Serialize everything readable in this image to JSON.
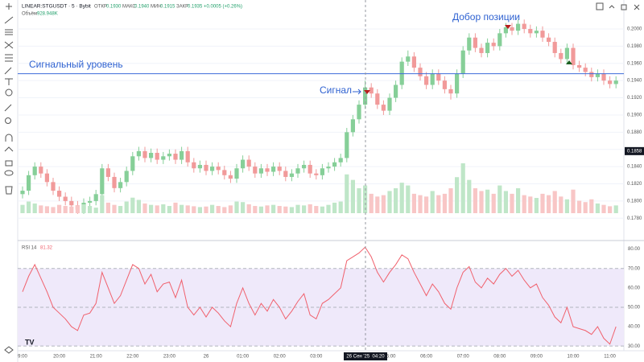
{
  "header": {
    "symbol": "LINEAR:STGUSDT · 5 · Bybit",
    "open_label": "ОТКР",
    "open": "0.1930",
    "high_label": "МАКС",
    "high": "0.1940",
    "low_label": "МИН",
    "low": "0.1915",
    "close_label": "ЗАКР",
    "close": "0.1935",
    "change": "+0.0005 (+0.26%)"
  },
  "chart_data": [
    {
      "type": "candlestick",
      "up_color": "#86cf98",
      "down_color": "#f19a9a",
      "ylim": [
        0.1755,
        0.2029
      ],
      "yticks": [
        {
          "value": 0.178,
          "label": "0.1780"
        },
        {
          "value": 0.18,
          "label": "0.1800"
        },
        {
          "value": 0.182,
          "label": "0.1820"
        },
        {
          "value": 0.184,
          "label": "0.1840"
        },
        {
          "value": 0.186,
          "label": "0.1860"
        },
        {
          "value": 0.188,
          "label": "0.1880"
        },
        {
          "value": 0.19,
          "label": "0.1900"
        },
        {
          "value": 0.192,
          "label": "0.1920"
        },
        {
          "value": 0.194,
          "label": "0.1940"
        },
        {
          "value": 0.196,
          "label": "0.1960"
        },
        {
          "value": 0.198,
          "label": "0.1980"
        },
        {
          "value": 0.2,
          "label": "0.2000"
        }
      ],
      "grid": true,
      "level": {
        "value": 0.1948,
        "label": "Сигнальный уровень",
        "color": "#3d6bd9"
      },
      "crosshair_price": {
        "value": 0.1858,
        "label": "0.1858"
      },
      "annotations": [
        "Добор позиции",
        "Сигнал"
      ],
      "open": [
        0.1808,
        0.1812,
        0.183,
        0.184,
        0.1832,
        0.1822,
        0.1812,
        0.1805,
        0.18,
        0.1795,
        0.179,
        0.1798,
        0.18,
        0.1808,
        0.1838,
        0.1828,
        0.1815,
        0.1822,
        0.1835,
        0.1852,
        0.1858,
        0.185,
        0.1856,
        0.1848,
        0.1852,
        0.1855,
        0.1848,
        0.1858,
        0.1845,
        0.1838,
        0.1842,
        0.1835,
        0.184,
        0.1836,
        0.183,
        0.1826,
        0.1838,
        0.1848,
        0.184,
        0.1832,
        0.1838,
        0.1834,
        0.184,
        0.1835,
        0.1828,
        0.1832,
        0.1838,
        0.1842,
        0.1832,
        0.183,
        0.1838,
        0.184,
        0.1845,
        0.185,
        0.188,
        0.1895,
        0.1912,
        0.1932,
        0.1925,
        0.1912,
        0.1905,
        0.192,
        0.1935,
        0.1962,
        0.1968,
        0.1955,
        0.1945,
        0.1935,
        0.1948,
        0.194,
        0.193,
        0.1925,
        0.1948,
        0.1975,
        0.199,
        0.1978,
        0.1972,
        0.1984,
        0.198,
        0.1995,
        0.2002,
        0.1998,
        0.2006,
        0.2,
        0.1995,
        0.1998,
        0.199,
        0.1985,
        0.1972,
        0.1965,
        0.1978,
        0.1958,
        0.1955,
        0.195,
        0.1944,
        0.1948,
        0.194,
        0.1936
      ],
      "high": [
        0.1817,
        0.1835,
        0.1845,
        0.1845,
        0.1837,
        0.1827,
        0.1817,
        0.181,
        0.1805,
        0.18,
        0.1803,
        0.1805,
        0.1813,
        0.1843,
        0.1843,
        0.1833,
        0.1827,
        0.184,
        0.1857,
        0.1863,
        0.1863,
        0.1861,
        0.1861,
        0.1857,
        0.186,
        0.186,
        0.1863,
        0.1863,
        0.185,
        0.1847,
        0.1847,
        0.1845,
        0.1845,
        0.1841,
        0.1835,
        0.1843,
        0.1853,
        0.1853,
        0.1845,
        0.1843,
        0.1843,
        0.1845,
        0.1845,
        0.184,
        0.1837,
        0.1843,
        0.1847,
        0.1847,
        0.1837,
        0.1843,
        0.1845,
        0.185,
        0.1855,
        0.1885,
        0.19,
        0.1917,
        0.194,
        0.1937,
        0.193,
        0.1917,
        0.1925,
        0.194,
        0.1967,
        0.1975,
        0.1973,
        0.196,
        0.195,
        0.1953,
        0.1953,
        0.1945,
        0.1935,
        0.1953,
        0.198,
        0.1995,
        0.1995,
        0.1983,
        0.1989,
        0.1989,
        0.2,
        0.2007,
        0.2007,
        0.2011,
        0.2011,
        0.2005,
        0.2003,
        0.2003,
        0.1995,
        0.199,
        0.1977,
        0.1983,
        0.1983,
        0.1963,
        0.196,
        0.1955,
        0.1953,
        0.1953,
        0.1945,
        0.1945
      ],
      "low": [
        0.1803,
        0.1807,
        0.1825,
        0.1827,
        0.1817,
        0.1807,
        0.18,
        0.1795,
        0.179,
        0.1785,
        0.1785,
        0.1793,
        0.1795,
        0.1803,
        0.1823,
        0.181,
        0.181,
        0.1817,
        0.183,
        0.1847,
        0.1845,
        0.1845,
        0.1843,
        0.1843,
        0.1847,
        0.1843,
        0.1843,
        0.184,
        0.1833,
        0.1833,
        0.183,
        0.183,
        0.1831,
        0.1825,
        0.1821,
        0.1821,
        0.1833,
        0.1835,
        0.1827,
        0.1827,
        0.1829,
        0.1829,
        0.183,
        0.1823,
        0.1823,
        0.1827,
        0.1833,
        0.1827,
        0.1825,
        0.1825,
        0.1833,
        0.1835,
        0.184,
        0.1845,
        0.1875,
        0.189,
        0.1907,
        0.192,
        0.1907,
        0.19,
        0.19,
        0.1915,
        0.193,
        0.1957,
        0.195,
        0.194,
        0.193,
        0.193,
        0.1935,
        0.1925,
        0.1918,
        0.192,
        0.1943,
        0.197,
        0.1973,
        0.1967,
        0.1967,
        0.1975,
        0.1975,
        0.199,
        0.1993,
        0.1993,
        0.1995,
        0.199,
        0.199,
        0.1985,
        0.198,
        0.1967,
        0.196,
        0.196,
        0.1953,
        0.195,
        0.1945,
        0.1939,
        0.1939,
        0.1935,
        0.1931,
        0.1931
      ],
      "close": [
        0.1812,
        0.183,
        0.184,
        0.1832,
        0.1822,
        0.1812,
        0.1805,
        0.18,
        0.1795,
        0.179,
        0.1798,
        0.18,
        0.1808,
        0.1838,
        0.1828,
        0.1815,
        0.1822,
        0.1835,
        0.1852,
        0.1858,
        0.185,
        0.1856,
        0.1848,
        0.1852,
        0.1855,
        0.1848,
        0.1858,
        0.1845,
        0.1838,
        0.1842,
        0.1835,
        0.184,
        0.1836,
        0.183,
        0.1826,
        0.1838,
        0.1848,
        0.184,
        0.1832,
        0.1838,
        0.1834,
        0.184,
        0.1835,
        0.1828,
        0.1832,
        0.1838,
        0.1842,
        0.1832,
        0.183,
        0.1838,
        0.184,
        0.1845,
        0.185,
        0.188,
        0.1895,
        0.1912,
        0.1932,
        0.1925,
        0.1912,
        0.1905,
        0.192,
        0.1935,
        0.1962,
        0.1968,
        0.1955,
        0.1945,
        0.1935,
        0.1948,
        0.194,
        0.193,
        0.1925,
        0.1948,
        0.1975,
        0.199,
        0.1978,
        0.1972,
        0.1984,
        0.198,
        0.1995,
        0.2002,
        0.1998,
        0.2006,
        0.2,
        0.1995,
        0.1998,
        0.199,
        0.1985,
        0.1972,
        0.1965,
        0.1978,
        0.1958,
        0.1955,
        0.195,
        0.1944,
        0.1948,
        0.194,
        0.1936,
        0.194
      ]
    },
    {
      "type": "bar",
      "title": "Объём",
      "value_label": "928.948K",
      "up_color": "#bfe6c8",
      "down_color": "#f8c6c6",
      "values": [
        300,
        420,
        350,
        280,
        250,
        220,
        300,
        260,
        240,
        280,
        320,
        260,
        200,
        650,
        380,
        300,
        260,
        420,
        560,
        480,
        350,
        300,
        280,
        320,
        260,
        380,
        300,
        280,
        250,
        220,
        240,
        300,
        260,
        220,
        280,
        420,
        400,
        320,
        260,
        240,
        280,
        300,
        260,
        240,
        220,
        300,
        280,
        320,
        260,
        240,
        300,
        380,
        420,
        1400,
        1200,
        900,
        1000,
        700,
        600,
        650,
        800,
        900,
        1100,
        1000,
        700,
        650,
        600,
        800,
        650,
        700,
        900,
        1300,
        1800,
        1200,
        900,
        800,
        850,
        700,
        1000,
        800,
        700,
        900,
        650,
        600,
        550,
        700,
        650,
        800,
        600,
        500,
        850,
        450,
        400,
        500,
        350,
        300,
        250,
        280
      ]
    },
    {
      "type": "line",
      "title": "RSI 14",
      "last_value_label": "81.32",
      "color": "#f0616d",
      "band_color": "#efe9fa",
      "ylim": [
        28,
        84
      ],
      "yticks": [
        {
          "value": 30,
          "label": "30.00"
        },
        {
          "value": 40,
          "label": "40.00"
        },
        {
          "value": 50,
          "label": "50.00"
        },
        {
          "value": 60,
          "label": "60.00"
        },
        {
          "value": 70,
          "label": "70.00"
        },
        {
          "value": 80,
          "label": "80.00"
        }
      ],
      "levels": [
        70,
        50,
        30
      ],
      "band": [
        30,
        70
      ],
      "crosshair_label": "26 Сен '25  04:20",
      "categories": [
        "9:00",
        null,
        null,
        null,
        null,
        null,
        "20:00",
        null,
        null,
        null,
        null,
        null,
        "21:00",
        null,
        null,
        null,
        null,
        null,
        "22:00",
        null,
        null,
        null,
        null,
        null,
        "23:00",
        null,
        null,
        null,
        null,
        null,
        "26",
        null,
        null,
        null,
        null,
        null,
        "01:00",
        null,
        null,
        null,
        null,
        null,
        "02:00",
        null,
        null,
        null,
        null,
        null,
        "03:00",
        null,
        null,
        null,
        null,
        null,
        null,
        null,
        null,
        null,
        null,
        null,
        "05:00",
        null,
        null,
        null,
        null,
        null,
        "06:00",
        null,
        null,
        null,
        null,
        null,
        "07:00",
        null,
        null,
        null,
        null,
        null,
        "08:00",
        null,
        null,
        null,
        null,
        null,
        "09:00",
        null,
        null,
        null,
        null,
        null,
        "10:00",
        null,
        null,
        null,
        null,
        null,
        "11:00",
        null
      ],
      "values": [
        58,
        66,
        72,
        65,
        58,
        50,
        47,
        44,
        40,
        38,
        46,
        47,
        52,
        68,
        60,
        52,
        56,
        64,
        72,
        70,
        62,
        67,
        58,
        62,
        63,
        55,
        64,
        50,
        46,
        50,
        45,
        50,
        47,
        43,
        40,
        52,
        60,
        52,
        46,
        52,
        48,
        54,
        50,
        44,
        48,
        53,
        57,
        46,
        44,
        52,
        54,
        57,
        60,
        74,
        76,
        78,
        81,
        76,
        68,
        63,
        68,
        72,
        77,
        75,
        68,
        62,
        56,
        62,
        58,
        52,
        49,
        60,
        68,
        71,
        63,
        60,
        65,
        62,
        67,
        70,
        66,
        69,
        64,
        60,
        62,
        55,
        51,
        45,
        42,
        50,
        40,
        39,
        38,
        36,
        40,
        34,
        31,
        40
      ]
    }
  ]
}
